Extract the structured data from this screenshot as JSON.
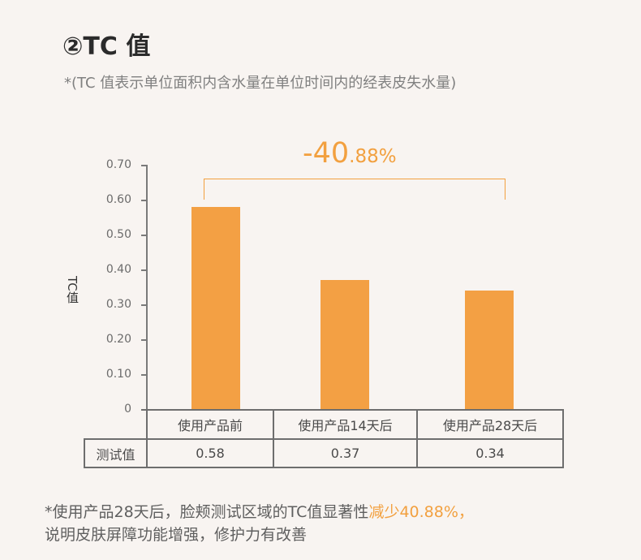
{
  "header": {
    "title": "②TC 值",
    "subtitle": "*(TC 值表示单位面积内含水量在单位时间内的经表皮失水量)"
  },
  "annotation": {
    "change_big": "-40",
    "change_small": ".88%",
    "color": "#f2a03f"
  },
  "axis": {
    "ylabel": "TC值",
    "ticks": [
      "0.70",
      "0.60",
      "0.50",
      "0.40",
      "0.30",
      "0.20",
      "0.10",
      "0"
    ]
  },
  "table": {
    "row_label": "测试值",
    "headers": [
      "使用产品前",
      "使用产品14天后",
      "使用产品28天后"
    ],
    "values": [
      "0.58",
      "0.37",
      "0.34"
    ]
  },
  "footer": {
    "line1_prefix": "*使用产品28天后，脸颊测试区域的TC值显著性",
    "line1_highlight": "减少40.88%，",
    "line2": "说明皮肤屏障功能增强，修护力有改善"
  },
  "colors": {
    "bar": "#f3a044",
    "accent": "#f2a03f",
    "background": "#f8f4f1"
  },
  "chart_data": {
    "type": "bar",
    "title": "②TC 值",
    "subtitle": "*(TC 值表示单位面积内含水量在单位时间内的经表皮失水量)",
    "categories": [
      "使用产品前",
      "使用产品14天后",
      "使用产品28天后"
    ],
    "values": [
      0.58,
      0.37,
      0.34
    ],
    "xlabel": "",
    "ylabel": "TC值",
    "ylim": [
      0,
      0.7
    ],
    "yticks": [
      0,
      0.1,
      0.2,
      0.3,
      0.4,
      0.5,
      0.6,
      0.7
    ],
    "grid": false,
    "annotations": [
      {
        "text": "-40.88%",
        "type": "bracket",
        "from": "使用产品前",
        "to": "使用产品28天后"
      }
    ],
    "data_table": {
      "row_label": "测试值",
      "values": [
        "0.58",
        "0.37",
        "0.34"
      ]
    }
  }
}
